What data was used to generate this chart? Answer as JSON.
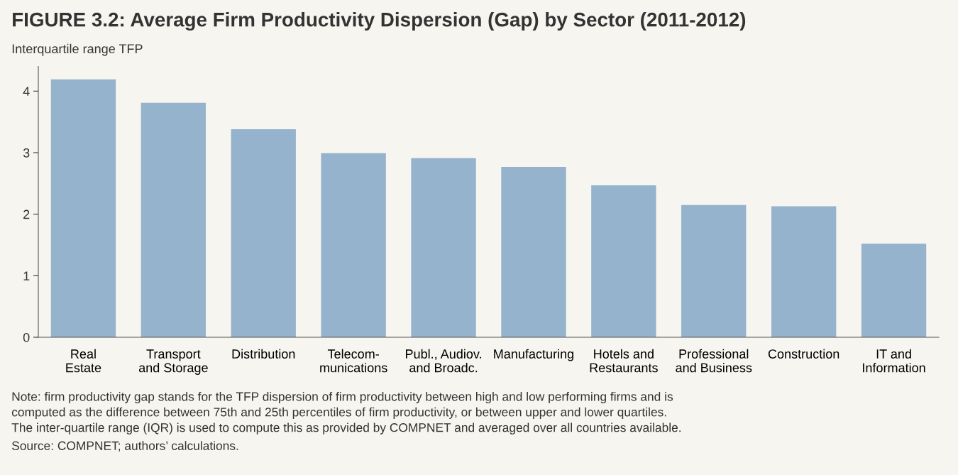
{
  "chart_data": {
    "type": "bar",
    "title": "FIGURE 3.2: Average Firm Productivity Dispersion (Gap) by Sector (2011-2012)",
    "ylabel": "Interquartile range TFP",
    "categories": [
      "Real\nEstate",
      "Transport\nand Storage",
      "Distribution",
      "Telecom-\nmunications",
      "Publ., Audiov.\nand Broadc.",
      "Manufacturing",
      "Hotels and\nRestaurants",
      "Professional\nand Business",
      "Construction",
      "IT and\nInformation"
    ],
    "values": [
      4.19,
      3.81,
      3.38,
      2.99,
      2.91,
      2.77,
      2.47,
      2.15,
      2.13,
      1.52
    ],
    "color": "#95b3cd",
    "ylim": [
      0,
      4.4
    ],
    "yticks": [
      0,
      1,
      2,
      3,
      4
    ],
    "grid": false,
    "legend": false,
    "annotations": [
      "Note: firm productivity gap stands for the TFP dispersion of firm productivity between high and low performing firms and is\ncomputed as the difference between 75th and 25th percentiles of firm productivity, or between upper and lower quartiles.\nThe inter-quartile range (IQR) is used to compute this as provided by COMPNET and averaged over all countries available.",
      "Source: COMPNET; authors’ calculations."
    ]
  }
}
